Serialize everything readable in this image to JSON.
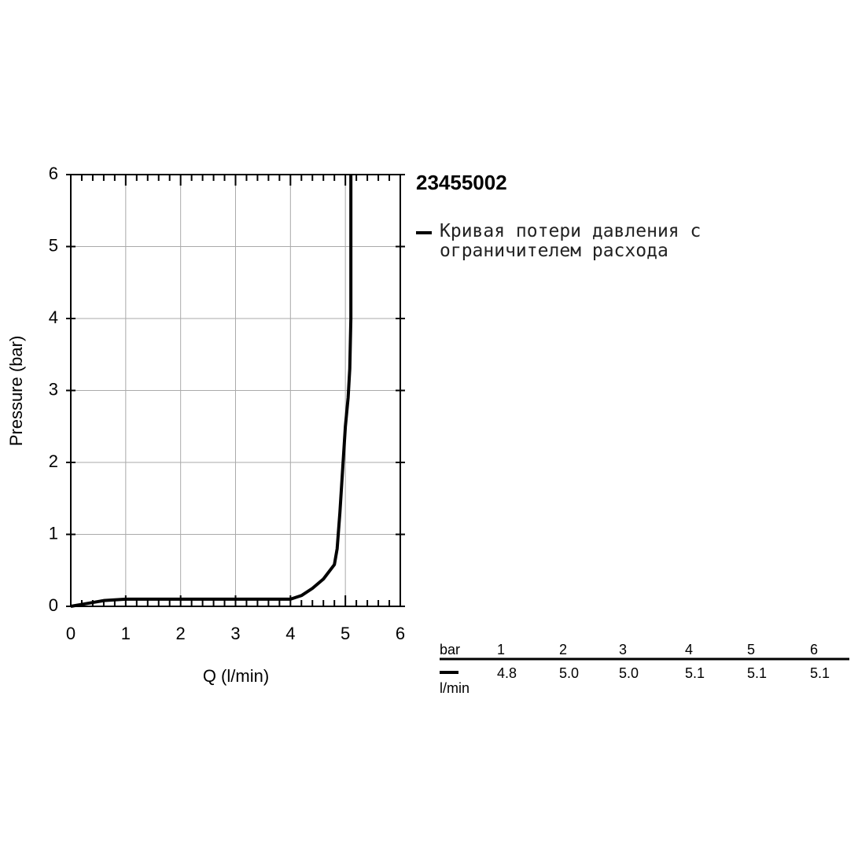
{
  "chart_data": {
    "type": "line",
    "title": "23455002",
    "x_label": "Q (l/min)",
    "y_label": "Pressure (bar)",
    "x": [
      0,
      0.3,
      0.6,
      1,
      4,
      4.2,
      4.4,
      4.6,
      4.8,
      4.85,
      4.9,
      4.95,
      5.0,
      5.05,
      5.08,
      5.1,
      5.1,
      5.1
    ],
    "series": [
      {
        "name": "Кривая потери давления с ограничителем расхода",
        "color": "#000000",
        "values": [
          0,
          0.04,
          0.08,
          0.1,
          0.1,
          0.15,
          0.25,
          0.38,
          0.58,
          0.8,
          1.3,
          1.9,
          2.5,
          2.9,
          3.3,
          4,
          5,
          6
        ]
      }
    ],
    "xlim": [
      0,
      6
    ],
    "ylim": [
      0,
      6
    ],
    "xticks": [
      0,
      1,
      2,
      3,
      4,
      5,
      6
    ],
    "yticks": [
      0,
      1,
      2,
      3,
      4,
      5,
      6
    ],
    "grid": true
  },
  "table": {
    "header": [
      "bar",
      "1",
      "2",
      "3",
      "4",
      "5",
      "6"
    ],
    "unit": "l/min",
    "row": [
      "4.8",
      "5.0",
      "5.0",
      "5.1",
      "5.1",
      "5.1"
    ]
  }
}
